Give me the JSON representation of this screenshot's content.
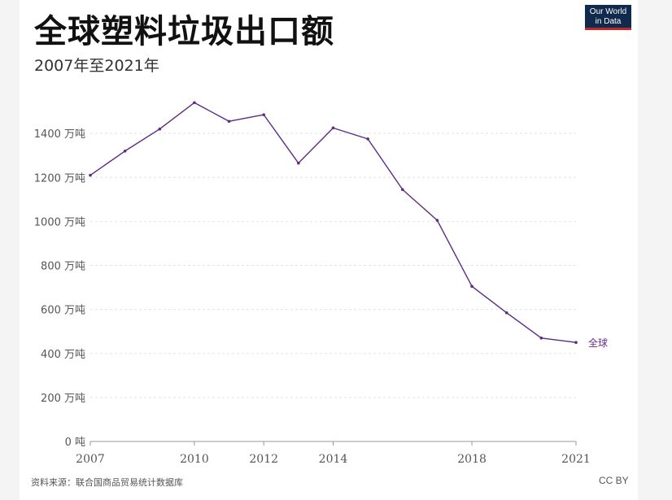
{
  "header": {
    "title": "全球塑料垃圾出口额",
    "subtitle": "2007年至2021年",
    "logo_line1": "Our World",
    "logo_line2": "in Data"
  },
  "footer": {
    "source": "资料来源：联合国商品贸易统计数据库",
    "license": "CC BY"
  },
  "colors": {
    "line": "#5b2a86",
    "grid": "#e3e3e3",
    "axis": "#999999"
  },
  "chart_data": {
    "type": "line",
    "title": "全球塑料垃圾出口额",
    "subtitle": "2007年至2021年",
    "x": [
      2007,
      2008,
      2009,
      2010,
      2011,
      2012,
      2013,
      2014,
      2015,
      2016,
      2017,
      2018,
      2019,
      2020,
      2021
    ],
    "series": [
      {
        "name": "全球",
        "values": [
          1210,
          1320,
          1420,
          1540,
          1455,
          1485,
          1265,
          1425,
          1375,
          1145,
          1005,
          705,
          585,
          470,
          450
        ]
      }
    ],
    "yticks": [
      {
        "value": 0,
        "label": "0 吨"
      },
      {
        "value": 200,
        "label": "200 万吨"
      },
      {
        "value": 400,
        "label": "400 万吨"
      },
      {
        "value": 600,
        "label": "600 万吨"
      },
      {
        "value": 800,
        "label": "800 万吨"
      },
      {
        "value": 1000,
        "label": "1000 万吨"
      },
      {
        "value": 1200,
        "label": "1200 万吨"
      },
      {
        "value": 1400,
        "label": "1400 万吨"
      }
    ],
    "xticks": [
      {
        "value": 2007,
        "label": "2007"
      },
      {
        "value": 2010,
        "label": "2010"
      },
      {
        "value": 2012,
        "label": "2012"
      },
      {
        "value": 2014,
        "label": "2014"
      },
      {
        "value": 2018,
        "label": "2018"
      },
      {
        "value": 2021,
        "label": "2021"
      }
    ],
    "ylim": [
      0,
      1600
    ],
    "xlim": [
      2007,
      2021
    ],
    "grid": true,
    "legend": "inline-right"
  }
}
